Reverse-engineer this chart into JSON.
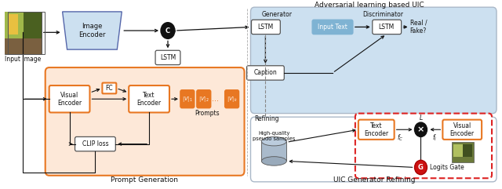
{
  "title_adversarial": "Adversarial learning based UIC",
  "label_prompt_gen": "Prompt Generation",
  "label_uic_refining": "UIC Generator Refining",
  "label_generator": "Generator",
  "label_discriminator": "Discriminator",
  "label_refining": "Refining",
  "label_high_quality": "High-quality\npseudo samples",
  "label_logits_gate": "Logits Gate",
  "label_input_image": "Input Image",
  "label_real_fake": "Real /\nFake?",
  "orange_light": "#fde8d8",
  "orange": "#e87722",
  "blue_light": "#cce0f0",
  "blue_box": "#7fb3d3",
  "red_dash": "#dd2222",
  "black": "#111111",
  "white": "#ffffff",
  "gray": "#555555",
  "gray_light": "#888888"
}
